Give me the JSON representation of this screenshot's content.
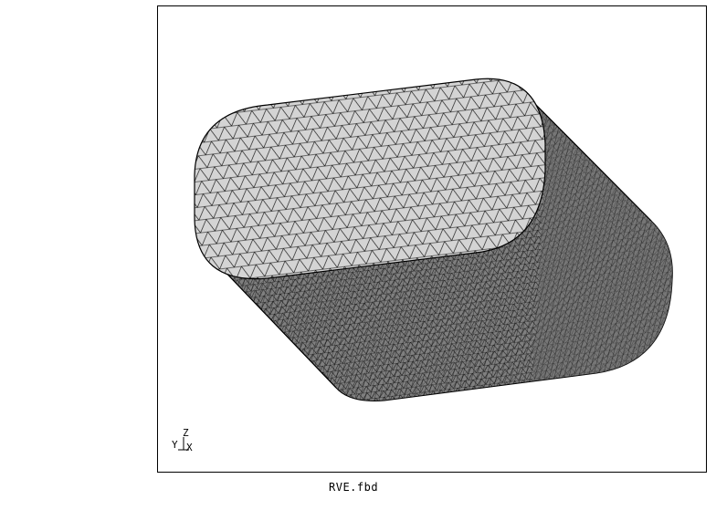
{
  "viewport": {
    "file_name": "RVE.fbd",
    "axes": {
      "z": "Z",
      "y": "Y",
      "x": "X"
    },
    "colors": {
      "top_face": "#d6d6d6",
      "side_face": "#7d7d7d",
      "side_face_dark": "#5a5a5a",
      "mesh_line": "#000000",
      "frame": "#000000"
    }
  }
}
